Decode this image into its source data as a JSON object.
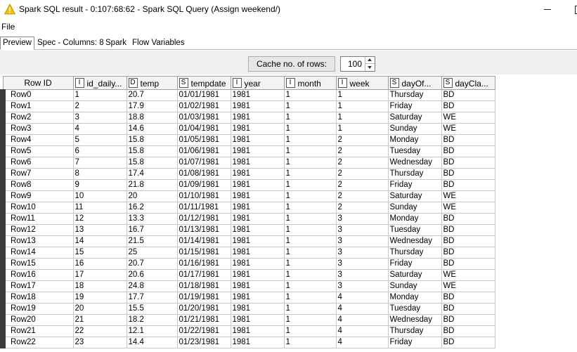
{
  "window": {
    "title": "Spark SQL result - 0:107:68:62 - Spark SQL Query (Assign weekend/)",
    "min_glyph": "",
    "max_glyph": ""
  },
  "menu": {
    "file": "File"
  },
  "tabs": [
    {
      "label": "Preview",
      "active": true
    },
    {
      "label": "Spec - Columns: 8",
      "active": false
    },
    {
      "label": "Spark",
      "active": false
    },
    {
      "label": "Flow Variables",
      "active": false
    }
  ],
  "toolbar": {
    "cache_label": "Cache no. of rows:",
    "cache_value": "100"
  },
  "table": {
    "columns": [
      {
        "type": "",
        "name": "Row ID"
      },
      {
        "type": "I",
        "name": "id_daily..."
      },
      {
        "type": "D",
        "name": "temp"
      },
      {
        "type": "S",
        "name": "tempdate"
      },
      {
        "type": "I",
        "name": "year"
      },
      {
        "type": "I",
        "name": "month"
      },
      {
        "type": "I",
        "name": "week"
      },
      {
        "type": "S",
        "name": "dayOf..."
      },
      {
        "type": "S",
        "name": "dayCla..."
      }
    ],
    "rows": [
      [
        "Row0",
        "1",
        "20.7",
        "01/01/1981",
        "1981",
        "1",
        "1",
        "Thursday",
        "BD"
      ],
      [
        "Row1",
        "2",
        "17.9",
        "01/02/1981",
        "1981",
        "1",
        "1",
        "Friday",
        "BD"
      ],
      [
        "Row2",
        "3",
        "18.8",
        "01/03/1981",
        "1981",
        "1",
        "1",
        "Saturday",
        "WE"
      ],
      [
        "Row3",
        "4",
        "14.6",
        "01/04/1981",
        "1981",
        "1",
        "1",
        "Sunday",
        "WE"
      ],
      [
        "Row4",
        "5",
        "15.8",
        "01/05/1981",
        "1981",
        "1",
        "2",
        "Monday",
        "BD"
      ],
      [
        "Row5",
        "6",
        "15.8",
        "01/06/1981",
        "1981",
        "1",
        "2",
        "Tuesday",
        "BD"
      ],
      [
        "Row6",
        "7",
        "15.8",
        "01/07/1981",
        "1981",
        "1",
        "2",
        "Wednesday",
        "BD"
      ],
      [
        "Row7",
        "8",
        "17.4",
        "01/08/1981",
        "1981",
        "1",
        "2",
        "Thursday",
        "BD"
      ],
      [
        "Row8",
        "9",
        "21.8",
        "01/09/1981",
        "1981",
        "1",
        "2",
        "Friday",
        "BD"
      ],
      [
        "Row9",
        "10",
        "20",
        "01/10/1981",
        "1981",
        "1",
        "2",
        "Saturday",
        "WE"
      ],
      [
        "Row10",
        "11",
        "16.2",
        "01/11/1981",
        "1981",
        "1",
        "2",
        "Sunday",
        "WE"
      ],
      [
        "Row11",
        "12",
        "13.3",
        "01/12/1981",
        "1981",
        "1",
        "3",
        "Monday",
        "BD"
      ],
      [
        "Row12",
        "13",
        "16.7",
        "01/13/1981",
        "1981",
        "1",
        "3",
        "Tuesday",
        "BD"
      ],
      [
        "Row13",
        "14",
        "21.5",
        "01/14/1981",
        "1981",
        "1",
        "3",
        "Wednesday",
        "BD"
      ],
      [
        "Row14",
        "15",
        "25",
        "01/15/1981",
        "1981",
        "1",
        "3",
        "Thursday",
        "BD"
      ],
      [
        "Row15",
        "16",
        "20.7",
        "01/16/1981",
        "1981",
        "1",
        "3",
        "Friday",
        "BD"
      ],
      [
        "Row16",
        "17",
        "20.6",
        "01/17/1981",
        "1981",
        "1",
        "3",
        "Saturday",
        "WE"
      ],
      [
        "Row17",
        "18",
        "24.8",
        "01/18/1981",
        "1981",
        "1",
        "3",
        "Sunday",
        "WE"
      ],
      [
        "Row18",
        "19",
        "17.7",
        "01/19/1981",
        "1981",
        "1",
        "4",
        "Monday",
        "BD"
      ],
      [
        "Row19",
        "20",
        "15.5",
        "01/20/1981",
        "1981",
        "1",
        "4",
        "Tuesday",
        "BD"
      ],
      [
        "Row20",
        "21",
        "18.2",
        "01/21/1981",
        "1981",
        "1",
        "4",
        "Wednesday",
        "BD"
      ],
      [
        "Row21",
        "22",
        "12.1",
        "01/22/1981",
        "1981",
        "1",
        "4",
        "Thursday",
        "BD"
      ],
      [
        "Row22",
        "23",
        "14.4",
        "01/23/1981",
        "1981",
        "1",
        "4",
        "Friday",
        "BD"
      ]
    ]
  },
  "icons": {
    "title": "warning-triangle-icon",
    "accent": "#f2c200"
  }
}
